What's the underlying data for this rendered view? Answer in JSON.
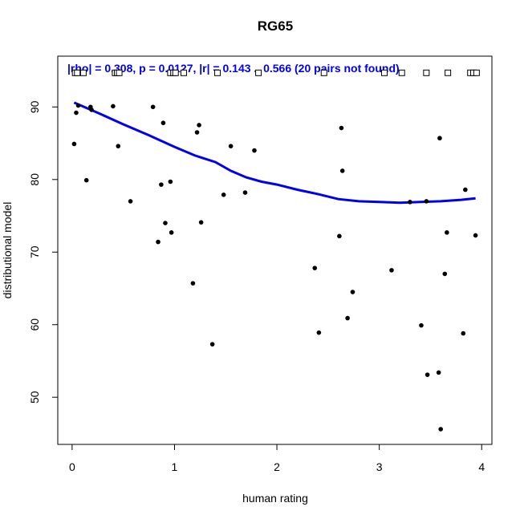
{
  "chart_data": {
    "type": "scatter",
    "title": "RG65",
    "xlabel": "human rating",
    "ylabel": "distributional model",
    "xlim": [
      -0.14,
      4.1
    ],
    "ylim": [
      43.5,
      97
    ],
    "xticks": [
      0,
      1,
      2,
      3,
      4
    ],
    "yticks": [
      50,
      60,
      70,
      80,
      90
    ],
    "grid": false,
    "annotation": "|rho| = 0.308, p = 0.0127, |r| = 0.143 .. 0.566 (20 pairs not found)",
    "colors": {
      "points": "#000000",
      "smooth": "#0000ee",
      "annotation": "#0000ee"
    },
    "points": [
      [
        0.02,
        84.9
      ],
      [
        0.04,
        89.2
      ],
      [
        0.06,
        90.2
      ],
      [
        0.14,
        79.9
      ],
      [
        0.18,
        90.0
      ],
      [
        0.19,
        89.6
      ],
      [
        0.4,
        90.1
      ],
      [
        0.45,
        84.6
      ],
      [
        0.57,
        77.0
      ],
      [
        0.79,
        90.0
      ],
      [
        0.84,
        71.4
      ],
      [
        0.87,
        79.3
      ],
      [
        0.89,
        87.8
      ],
      [
        0.91,
        74.0
      ],
      [
        0.96,
        79.7
      ],
      [
        0.97,
        72.7
      ],
      [
        1.18,
        65.7
      ],
      [
        1.22,
        86.5
      ],
      [
        1.24,
        87.5
      ],
      [
        1.26,
        74.1
      ],
      [
        1.37,
        57.3
      ],
      [
        1.48,
        77.9
      ],
      [
        1.55,
        84.6
      ],
      [
        1.69,
        78.2
      ],
      [
        1.78,
        84.0
      ],
      [
        2.37,
        67.8
      ],
      [
        2.41,
        58.9
      ],
      [
        2.61,
        72.2
      ],
      [
        2.63,
        87.1
      ],
      [
        2.64,
        81.2
      ],
      [
        2.69,
        60.9
      ],
      [
        2.74,
        64.5
      ],
      [
        3.12,
        67.5
      ],
      [
        3.3,
        76.9
      ],
      [
        3.41,
        59.9
      ],
      [
        3.46,
        77.0
      ],
      [
        3.47,
        53.1
      ],
      [
        3.58,
        53.4
      ],
      [
        3.59,
        85.7
      ],
      [
        3.6,
        45.6
      ],
      [
        3.64,
        67.0
      ],
      [
        3.66,
        72.7
      ],
      [
        3.82,
        58.8
      ],
      [
        3.84,
        78.6
      ],
      [
        3.94,
        72.3
      ]
    ],
    "not_found_x": [
      0.03,
      0.05,
      0.11,
      0.42,
      0.44,
      0.46,
      0.96,
      0.99,
      1.01,
      1.09,
      1.42,
      1.82,
      2.46,
      3.05,
      3.22,
      3.46,
      3.67,
      3.89,
      3.92,
      3.95
    ],
    "not_found_y": 94.7,
    "smooth": [
      [
        0.02,
        90.6
      ],
      [
        0.25,
        89.2
      ],
      [
        0.5,
        87.6
      ],
      [
        0.75,
        86.1
      ],
      [
        1.0,
        84.5
      ],
      [
        1.2,
        83.3
      ],
      [
        1.4,
        82.4
      ],
      [
        1.55,
        81.2
      ],
      [
        1.7,
        80.3
      ],
      [
        1.85,
        79.7
      ],
      [
        2.0,
        79.3
      ],
      [
        2.2,
        78.6
      ],
      [
        2.4,
        78.0
      ],
      [
        2.6,
        77.3
      ],
      [
        2.8,
        77.0
      ],
      [
        3.0,
        76.9
      ],
      [
        3.2,
        76.8
      ],
      [
        3.4,
        76.9
      ],
      [
        3.6,
        77.0
      ],
      [
        3.8,
        77.2
      ],
      [
        3.94,
        77.4
      ]
    ]
  }
}
